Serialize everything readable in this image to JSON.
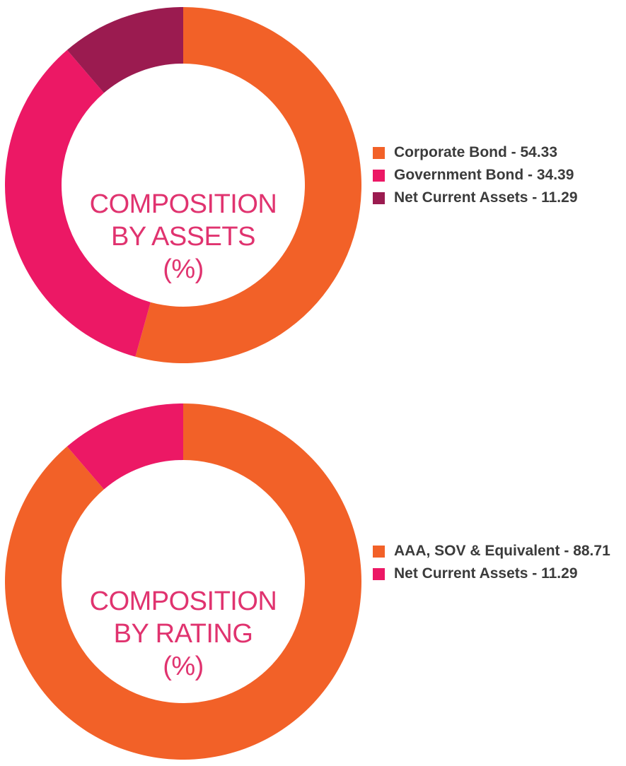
{
  "chart_data": [
    {
      "type": "pie",
      "variant": "donut",
      "title_lines": [
        "COMPOSITION",
        "BY ASSETS",
        "(%)"
      ],
      "legend_position": "right",
      "slices": [
        {
          "label": "Corporate Bond - 54.33",
          "value": 54.33,
          "color": "#f26128"
        },
        {
          "label": "Government Bond - 34.39",
          "value": 34.39,
          "color": "#ec1865"
        },
        {
          "label": "Net Current Assets - 11.29",
          "value": 11.29,
          "color": "#9b1b50"
        }
      ]
    },
    {
      "type": "pie",
      "variant": "donut",
      "title_lines": [
        "COMPOSITION",
        "BY RATING",
        "(%)"
      ],
      "legend_position": "right",
      "slices": [
        {
          "label": "AAA, SOV & Equivalent - 88.71",
          "value": 88.71,
          "color": "#f26128"
        },
        {
          "label": "Net Current Assets - 11.29",
          "value": 11.29,
          "color": "#ec1865"
        }
      ]
    }
  ]
}
